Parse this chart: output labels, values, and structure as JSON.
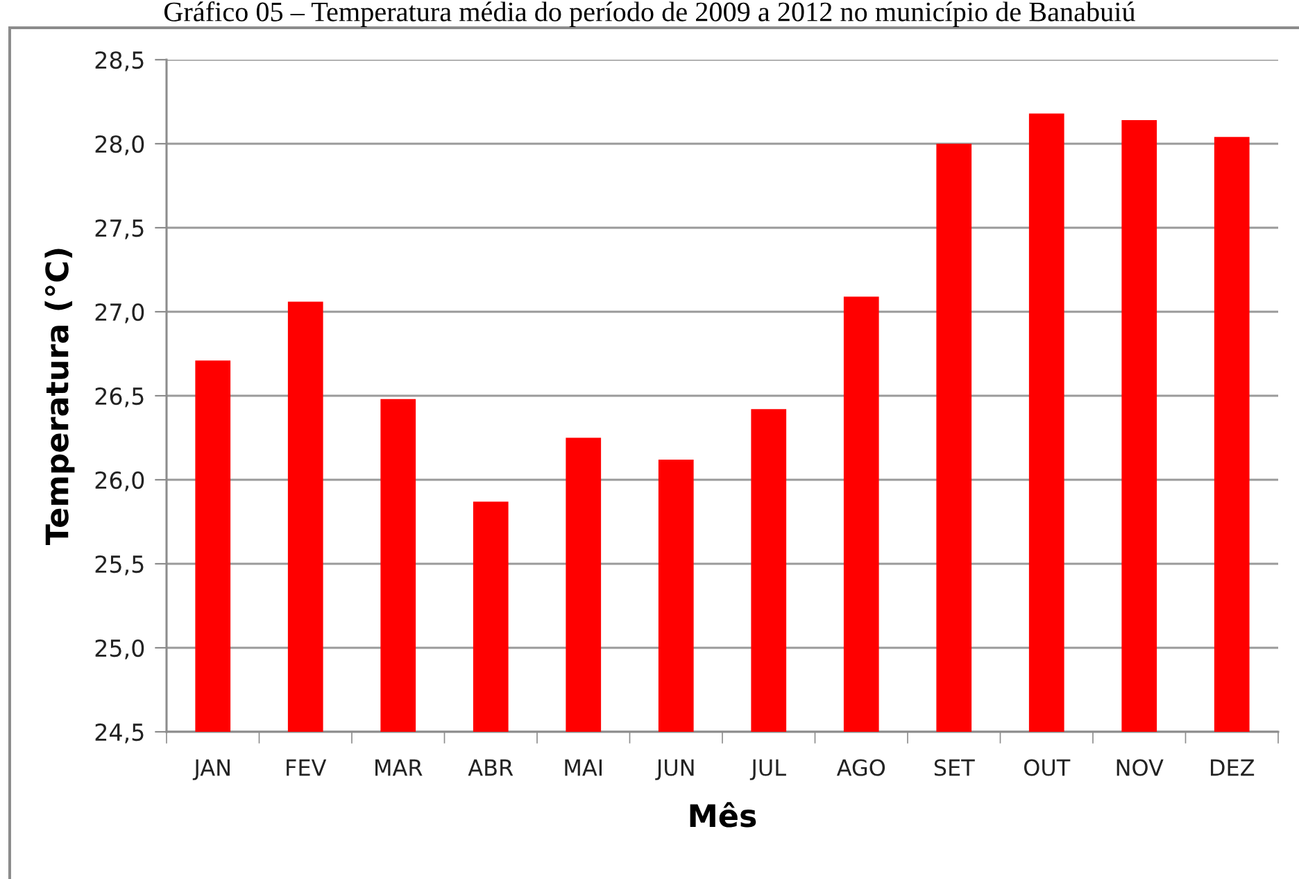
{
  "chart_data": {
    "type": "bar",
    "title": "Gráfico 05 – Temperatura média do período de 2009 a 2012 no município de Banabuiú",
    "xlabel": "Mês",
    "ylabel": "Temperatura (°C)",
    "categories": [
      "JAN",
      "FEV",
      "MAR",
      "ABR",
      "MAI",
      "JUN",
      "JUL",
      "AGO",
      "SET",
      "OUT",
      "NOV",
      "DEZ"
    ],
    "values": [
      26.71,
      27.06,
      26.48,
      25.87,
      26.25,
      26.12,
      26.42,
      27.09,
      28.0,
      28.18,
      28.14,
      28.04
    ],
    "color": "#ff0000",
    "ylim": [
      24.5,
      28.5
    ],
    "yticks": [
      {
        "value": 24.5,
        "label": "24,5"
      },
      {
        "value": 25.0,
        "label": "25,0"
      },
      {
        "value": 25.5,
        "label": "25,5"
      },
      {
        "value": 26.0,
        "label": "26,0"
      },
      {
        "value": 26.5,
        "label": "26,5"
      },
      {
        "value": 27.0,
        "label": "27,0"
      },
      {
        "value": 27.5,
        "label": "27,5"
      },
      {
        "value": 28.0,
        "label": "28,0"
      },
      {
        "value": 28.5,
        "label": "28,5"
      }
    ],
    "grid": "y"
  }
}
